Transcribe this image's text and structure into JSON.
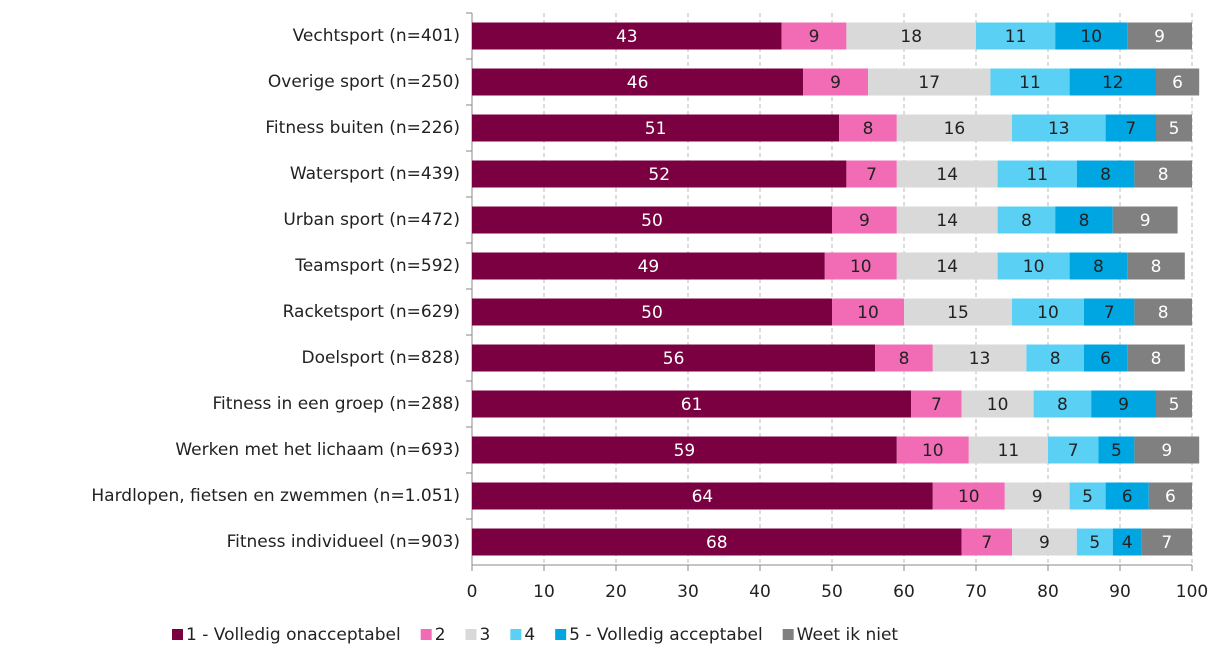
{
  "chart_data": {
    "type": "stacked-bar",
    "categories": [
      "Vechtsport (n=401)",
      "Overige sport (n=250)",
      "Fitness buiten (n=226)",
      "Watersport (n=439)",
      "Urban sport (n=472)",
      "Teamsport (n=592)",
      "Racketsport (n=629)",
      "Doelsport (n=828)",
      "Fitness in een groep (n=288)",
      "Werken met het lichaam (n=693)",
      "Hardlopen, fietsen en zwemmen (n=1.051)",
      "Fitness individueel (n=903)"
    ],
    "series": [
      {
        "name": "1 - Volledig onacceptabel",
        "color": "#7b0041",
        "values": [
          43,
          46,
          51,
          52,
          50,
          49,
          50,
          56,
          61,
          59,
          64,
          68
        ]
      },
      {
        "name": "2",
        "color": "#f26bb5",
        "values": [
          9,
          9,
          8,
          7,
          9,
          10,
          10,
          8,
          7,
          10,
          10,
          7
        ]
      },
      {
        "name": "3",
        "color": "#d9d9d9",
        "values": [
          18,
          17,
          16,
          14,
          14,
          14,
          15,
          13,
          10,
          11,
          9,
          9
        ]
      },
      {
        "name": "4",
        "color": "#5bd0f5",
        "values": [
          11,
          11,
          13,
          11,
          8,
          10,
          10,
          8,
          8,
          7,
          5,
          5
        ]
      },
      {
        "name": "5 - Volledig acceptabel",
        "color": "#00a6e2",
        "values": [
          10,
          12,
          7,
          8,
          8,
          8,
          7,
          6,
          9,
          5,
          6,
          4
        ]
      },
      {
        "name": "Weet ik niet",
        "color": "#808080",
        "values": [
          9,
          6,
          5,
          8,
          9,
          8,
          8,
          8,
          5,
          9,
          6,
          7
        ]
      }
    ],
    "xlim": [
      0,
      100
    ],
    "xticks": [
      0,
      10,
      20,
      30,
      40,
      50,
      60,
      70,
      80,
      90,
      100
    ],
    "grid": true,
    "legend": "bottom"
  }
}
